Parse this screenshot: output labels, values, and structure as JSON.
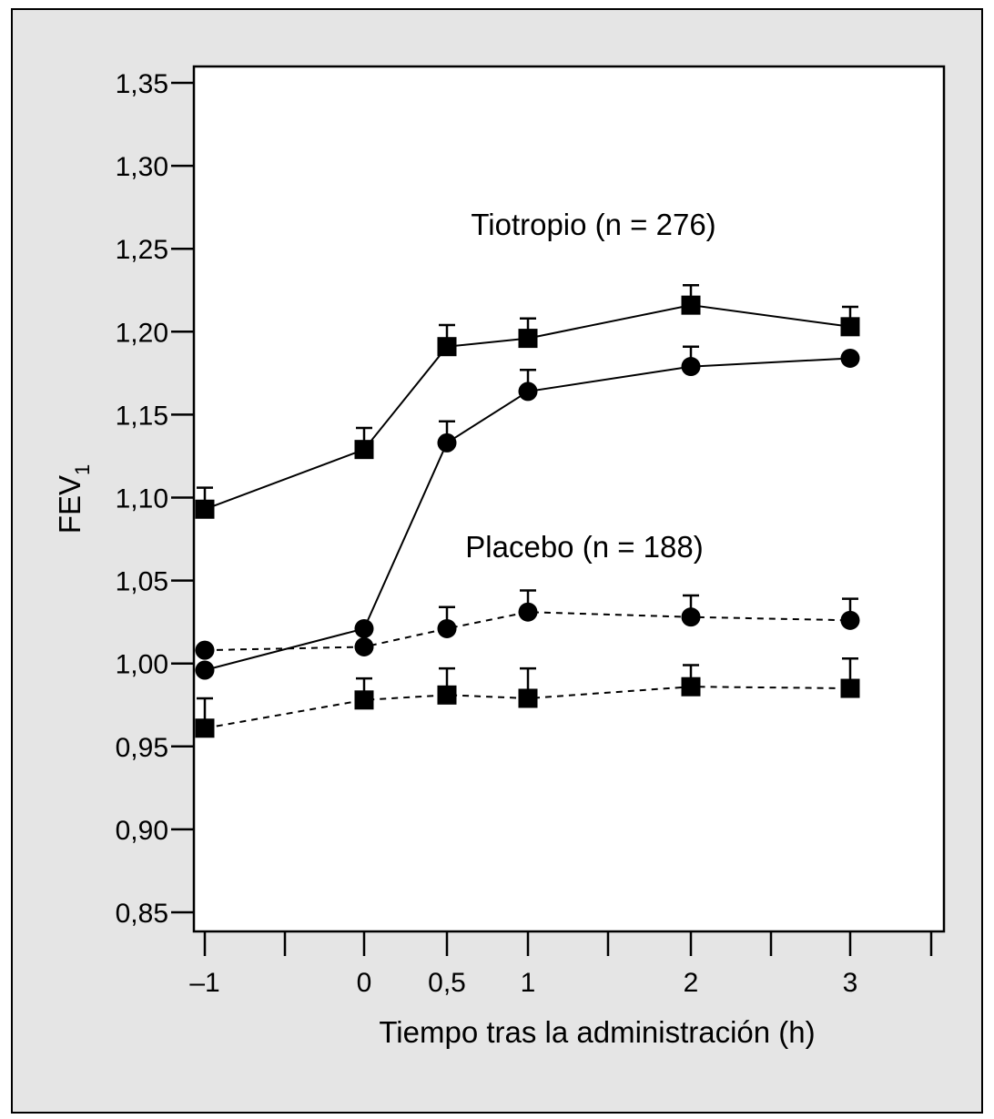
{
  "chart_data": {
    "type": "line",
    "title": "",
    "xlabel": "Tiempo tras la administración (h)",
    "ylabel": "FEV",
    "ylabel_subscript": "1",
    "xlim": [
      -1,
      3
    ],
    "ylim": [
      0.85,
      1.35
    ],
    "x_ticks": [
      -1,
      0,
      0.5,
      1,
      2,
      3
    ],
    "x_tick_labels": [
      "–1",
      "0",
      "0,5",
      "1",
      "2",
      "3"
    ],
    "y_ticks": [
      0.85,
      0.9,
      0.95,
      1.0,
      1.05,
      1.1,
      1.15,
      1.2,
      1.25,
      1.3,
      1.35
    ],
    "y_tick_labels": [
      "0,85",
      "0,90",
      "0,95",
      "1,00",
      "1,05",
      "1,10",
      "1,15",
      "1,20",
      "1,25",
      "1,30",
      "1,35"
    ],
    "grid": false,
    "legend": "none",
    "annotations": [
      {
        "id": "tiotropio",
        "text": "Tiotropio (n = 276)",
        "near": "upper series"
      },
      {
        "id": "placebo",
        "text": "Placebo (n = 188)",
        "near": "lower series"
      }
    ],
    "series": [
      {
        "group": "tiotropio",
        "marker": "square",
        "line": "solid",
        "x": [
          -1,
          0,
          0.5,
          1,
          2,
          3
        ],
        "values": [
          1.093,
          1.129,
          1.191,
          1.196,
          1.216,
          1.203
        ],
        "error_upper": [
          0.013,
          0.013,
          0.013,
          0.012,
          0.012,
          0.012
        ]
      },
      {
        "group": "tiotropio",
        "marker": "circle",
        "line": "solid",
        "x": [
          -1,
          0,
          0.5,
          1,
          2,
          3
        ],
        "values": [
          0.996,
          1.021,
          1.133,
          1.164,
          1.179,
          1.184
        ],
        "error_upper": [
          0,
          0,
          0.013,
          0.013,
          0.012,
          0
        ],
        "note": "the first two points carry no visible error bar"
      },
      {
        "group": "placebo",
        "marker": "circle",
        "line": "dashed",
        "x": [
          -1,
          0,
          0.5,
          1,
          2,
          3
        ],
        "values": [
          1.008,
          1.01,
          1.021,
          1.031,
          1.028,
          1.026
        ],
        "error_upper": [
          0,
          0,
          0.013,
          0.013,
          0.013,
          0.013
        ]
      },
      {
        "group": "placebo",
        "marker": "square",
        "line": "dashed",
        "x": [
          -1,
          0,
          0.5,
          1,
          2,
          3
        ],
        "values": [
          0.961,
          0.978,
          0.981,
          0.979,
          0.986,
          0.985
        ],
        "error_upper": [
          0.018,
          0.013,
          0.016,
          0.018,
          0.013,
          0.018
        ]
      }
    ]
  },
  "colors": {
    "frame_background": "#e5e5e5",
    "plot_background": "#ffffff",
    "ink": "#000000"
  }
}
